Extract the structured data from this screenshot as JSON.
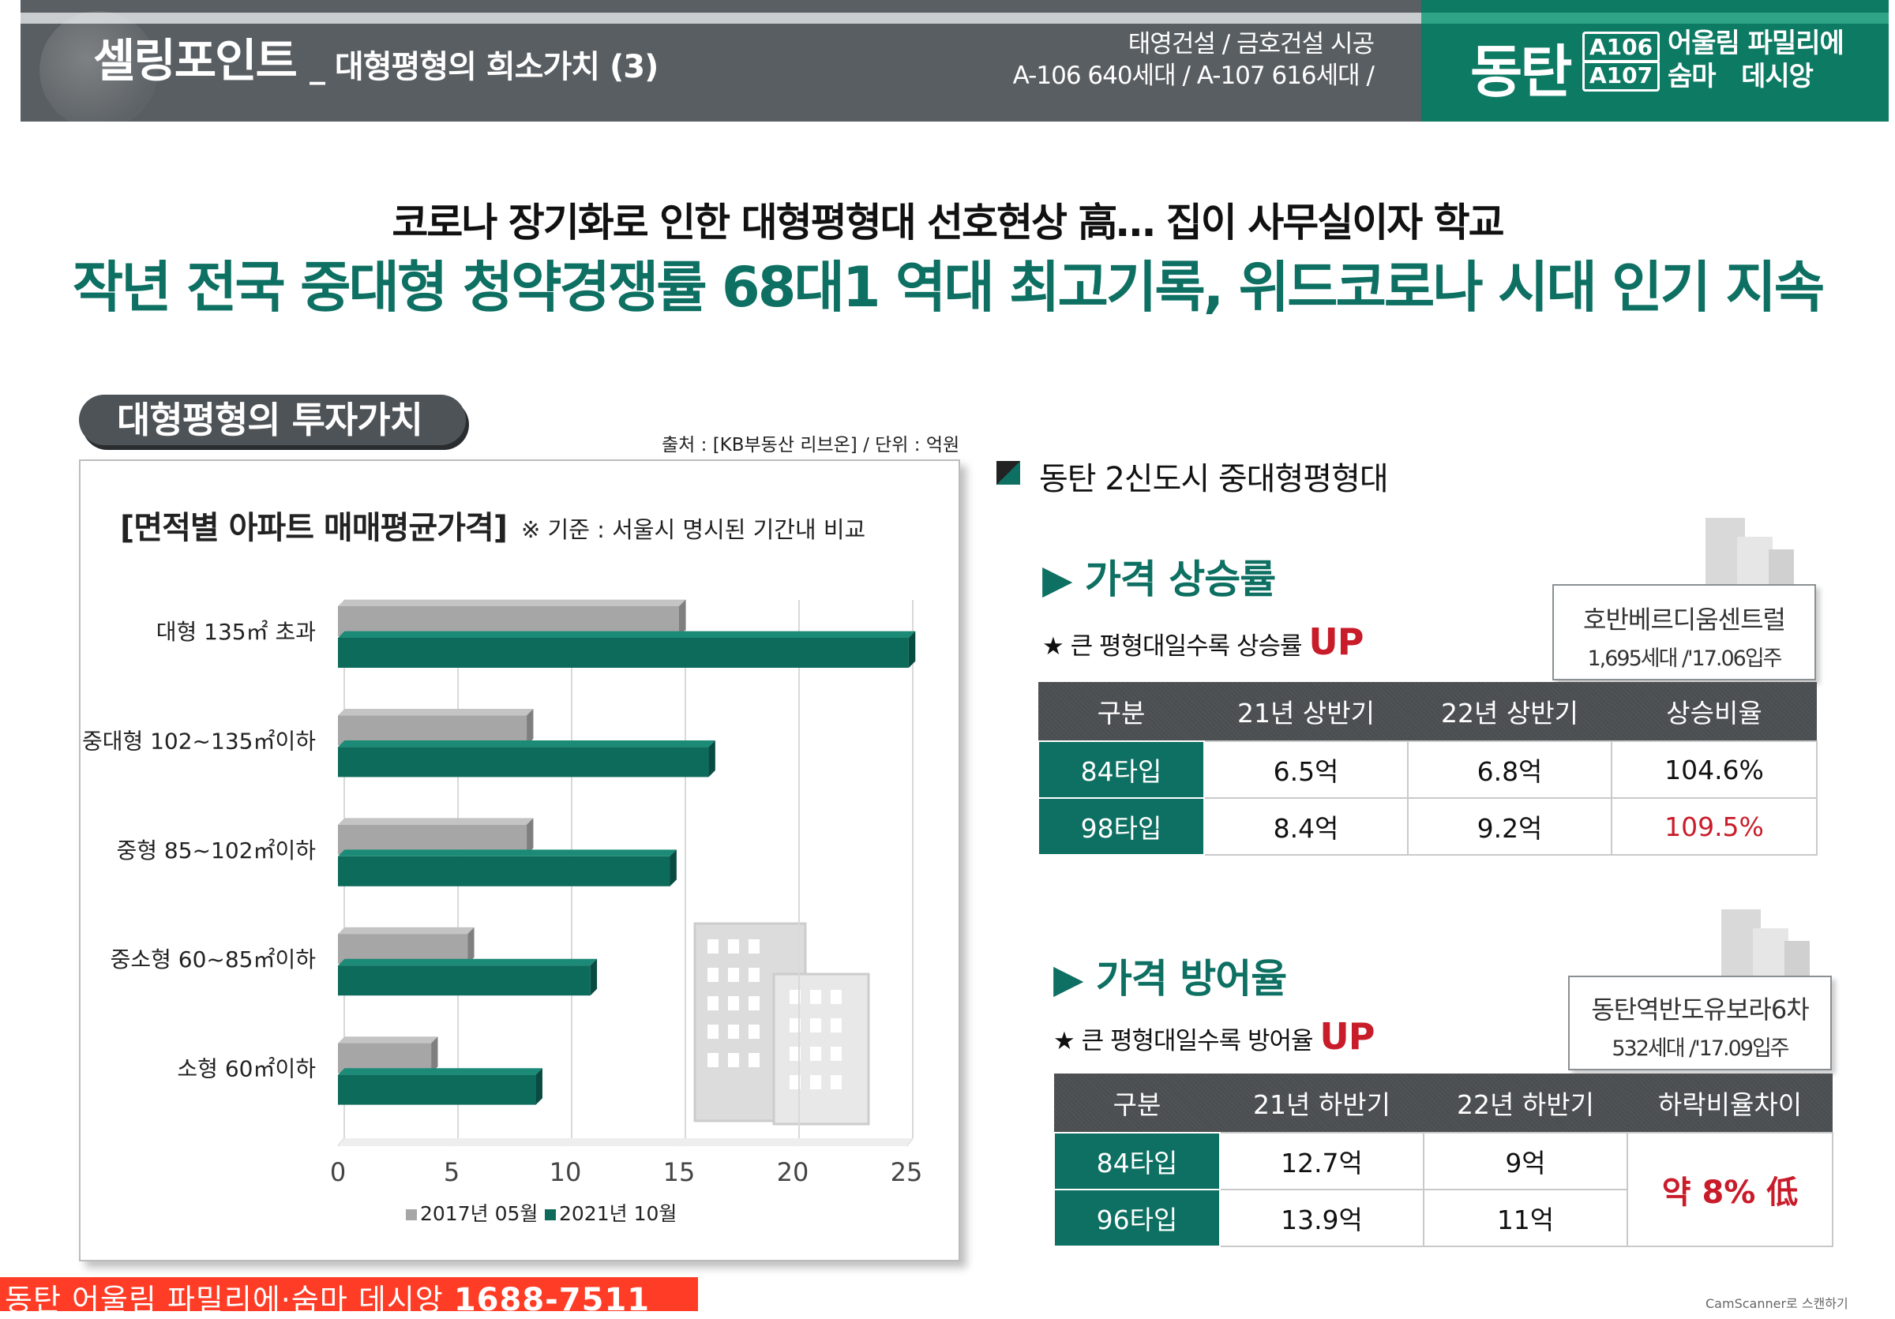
{
  "header": {
    "title_main": "셀링포인트",
    "title_sub": "_ 대형평형의 희소가치 (3)",
    "builder_line1": "태영건설 / 금호건설 시공",
    "builder_line2": "A-106 640세대 / A-107 616세대 /",
    "brand_city": "동탄",
    "badge_1": "A106",
    "badge_2": "A107",
    "brand_line1": "어울림 파밀리에",
    "brand_line2": "숨마   데시앙"
  },
  "headline": {
    "line1": "코로나 장기화로 인한 대형평형대 선호현상 高… 집이 사무실이자 학교",
    "line2": "작년 전국 중대형 청약경쟁률 68대1 역대 최고기록, 위드코로나 시대 인기 지속"
  },
  "left_panel": {
    "pill_label": "대형평형의 투자가치",
    "source": "출처 : [KB부동산 리브온] / 단위 : 억원",
    "chart_title": "[면적별 아파트 매매평균가격]",
    "chart_note": "※ 기준 : 서울시 명시된 기간내 비교"
  },
  "chart_data": {
    "type": "bar",
    "orientation": "horizontal",
    "title": "[면적별 아파트 매매평균가격]",
    "categories": [
      "대형 135㎡ 초과",
      "중대형 102~135㎡이하",
      "중형 85~102㎡이하",
      "중소형 60~85㎡이하",
      "소형 60㎡이하"
    ],
    "series": [
      {
        "name": "2017년 05월",
        "values": [
          15,
          8.3,
          8.3,
          5.7,
          4.1
        ],
        "color": "#a6a6a6"
      },
      {
        "name": "2021년 10월",
        "values": [
          25.1,
          16.3,
          14.6,
          11.1,
          8.7
        ],
        "color": "#0d6b5c"
      }
    ],
    "xlim": [
      0,
      25
    ],
    "xticks": [
      "0",
      "5",
      "10",
      "15",
      "20",
      "25"
    ],
    "grid": true,
    "legend": "bottom"
  },
  "right_panel": {
    "section_title": "동탄 2신도시 중대형평형대",
    "rise": {
      "title": "▶ 가격 상승률",
      "note": "★ 큰 평형대일수록 상승률 ",
      "note_up": "UP",
      "box_name": "호반베르디움센트럴",
      "box_detail": "1,695세대 /'17.06입주",
      "headers": [
        "구분",
        "21년 상반기",
        "22년 상반기",
        "상승비율"
      ],
      "rows": [
        {
          "label": "84타입",
          "c1": "6.5억",
          "c2": "6.8억",
          "c3": "104.6%"
        },
        {
          "label": "98타입",
          "c1": "8.4억",
          "c2": "9.2억",
          "c3": "109.5%"
        }
      ]
    },
    "defense": {
      "title": "▶ 가격 방어율",
      "note": "★ 큰 평형대일수록 방어율 ",
      "note_up": "UP",
      "box_name": "동탄역반도유보라6차",
      "box_detail": "532세대 /'17.09입주",
      "headers": [
        "구분",
        "21년 하반기",
        "22년 하반기",
        "하락비율차이"
      ],
      "rows": [
        {
          "label": "84타입",
          "c1": "12.7억",
          "c2": "9억"
        },
        {
          "label": "96타입",
          "c1": "13.9억",
          "c2": "11억"
        }
      ],
      "merged_value": "약 8% 低"
    }
  },
  "footer": {
    "text": "동탄 어울림 파밀리에·숨마 데시앙 ",
    "phone": "1688-7511",
    "scanner": "CamScanner로 스캔하기"
  },
  "colors": {
    "brand_green": "#0d7062",
    "header_gray": "#595e62",
    "accent_red": "#c91c2a",
    "footer_red": "#ff3c26"
  }
}
